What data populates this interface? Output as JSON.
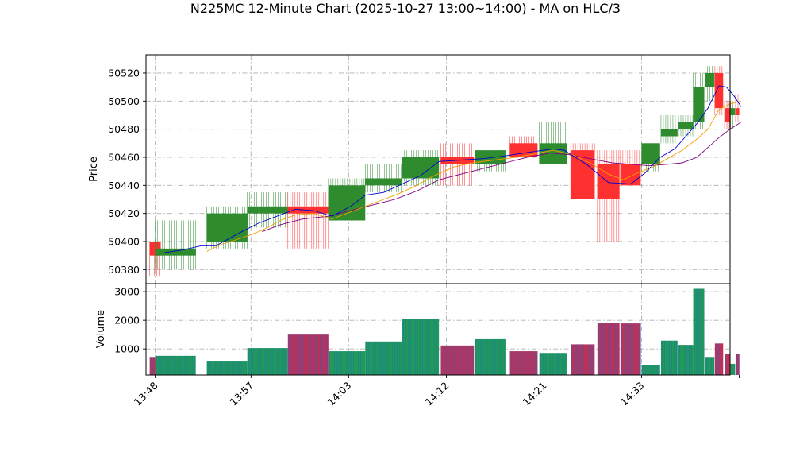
{
  "chart_data": {
    "type": "candlestick",
    "title": "N225MC 12-Minute Chart (2025-10-27 13:00~14:00) - MA on HLC/3",
    "price_panel": {
      "ylabel": "Price",
      "yticks": [
        50380,
        50400,
        50420,
        50440,
        50460,
        50480,
        50500,
        50520
      ],
      "ylim": [
        50370,
        50533
      ],
      "grid": true
    },
    "volume_panel": {
      "ylabel": "Volume",
      "yticks": [
        1000,
        2000,
        3000
      ],
      "ylim": [
        90,
        3280
      ],
      "grid": true
    },
    "xlim": [
      -0.5,
      31.2
    ],
    "xticks": [
      {
        "index": 0,
        "label": "13:48"
      },
      {
        "index": 5.2,
        "label": "13:57"
      },
      {
        "index": 10.5,
        "label": "14:03"
      },
      {
        "index": 15.8,
        "label": "14:12"
      },
      {
        "index": 21.1,
        "label": "14:21"
      },
      {
        "index": 26.4,
        "label": "14:33"
      },
      {
        "index": 31.7,
        "label": ""
      }
    ],
    "up_color": "#2e8b2e",
    "down_color": "#ff3030",
    "vol_up_color": "#1f9a58",
    "vol_down_color": "#b8325a",
    "ma_fast_color": "#0000cc",
    "ma_mid_color": "#f0a000",
    "ma_slow_color": "#800080",
    "candles": [
      {
        "x": 0,
        "w": 0.6,
        "open": 50400,
        "high": 50400,
        "low": 50375,
        "close": 50390,
        "volume": 720
      },
      {
        "x": 1.1,
        "w": 2.2,
        "open": 50390,
        "high": 50415,
        "low": 50380,
        "close": 50395,
        "volume": 760
      },
      {
        "x": 3.9,
        "w": 2.2,
        "open": 50400,
        "high": 50425,
        "low": 50395,
        "close": 50420,
        "volume": 560
      },
      {
        "x": 6.1,
        "w": 2.2,
        "open": 50420,
        "high": 50435,
        "low": 50410,
        "close": 50425,
        "volume": 1030
      },
      {
        "x": 8.3,
        "w": 2.2,
        "open": 50425,
        "high": 50435,
        "low": 50395,
        "close": 50420,
        "volume": 1500
      },
      {
        "x": 10.4,
        "w": 2.0,
        "open": 50415,
        "high": 50445,
        "low": 50415,
        "close": 50440,
        "volume": 920
      },
      {
        "x": 12.4,
        "w": 2.0,
        "open": 50440,
        "high": 50455,
        "low": 50435,
        "close": 50445,
        "volume": 1260
      },
      {
        "x": 14.4,
        "w": 2.0,
        "open": 50445,
        "high": 50465,
        "low": 50440,
        "close": 50460,
        "volume": 2060
      },
      {
        "x": 16.4,
        "w": 1.8,
        "open": 50460,
        "high": 50470,
        "low": 50440,
        "close": 50455,
        "volume": 1120
      },
      {
        "x": 18.2,
        "w": 1.7,
        "open": 50455,
        "high": 50465,
        "low": 50450,
        "close": 50465,
        "volume": 1340
      },
      {
        "x": 20.0,
        "w": 1.5,
        "open": 50470,
        "high": 50475,
        "low": 50460,
        "close": 50460,
        "volume": 920
      },
      {
        "x": 21.6,
        "w": 1.5,
        "open": 50455,
        "high": 50485,
        "low": 50455,
        "close": 50470,
        "volume": 860
      },
      {
        "x": 23.2,
        "w": 1.3,
        "open": 50465,
        "high": 50470,
        "low": 50430,
        "close": 50430,
        "volume": 1160
      },
      {
        "x": 24.6,
        "w": 1.2,
        "open": 50455,
        "high": 50465,
        "low": 50400,
        "close": 50430,
        "volume": 1920
      },
      {
        "x": 25.8,
        "w": 1.1,
        "open": 50455,
        "high": 50465,
        "low": 50440,
        "close": 50440,
        "volume": 1890
      },
      {
        "x": 26.9,
        "w": 1.0,
        "open": 50455,
        "high": 50470,
        "low": 50450,
        "close": 50470,
        "volume": 430
      },
      {
        "x": 27.9,
        "w": 0.9,
        "open": 50475,
        "high": 50490,
        "low": 50470,
        "close": 50480,
        "volume": 1290
      },
      {
        "x": 28.8,
        "w": 0.8,
        "open": 50480,
        "high": 50490,
        "low": 50475,
        "close": 50485,
        "volume": 1140
      },
      {
        "x": 29.5,
        "w": 0.6,
        "open": 50485,
        "high": 50520,
        "low": 50480,
        "close": 50510,
        "volume": 3100
      },
      {
        "x": 30.1,
        "w": 0.5,
        "open": 50510,
        "high": 50525,
        "low": 50500,
        "close": 50520,
        "volume": 720
      },
      {
        "x": 30.6,
        "w": 0.45,
        "open": 50520,
        "high": 50525,
        "low": 50490,
        "close": 50495,
        "volume": 1190
      },
      {
        "x": 31.05,
        "w": 0.3,
        "open": 50495,
        "high": 50500,
        "low": 50480,
        "close": 50485,
        "volume": 820
      },
      {
        "x": 31.35,
        "w": 0.25,
        "open": 50490,
        "high": 50500,
        "low": 50480,
        "close": 50495,
        "volume": 480
      },
      {
        "x": 31.6,
        "w": 0.2,
        "open": 50495,
        "high": 50505,
        "low": 50485,
        "close": 50490,
        "volume": 820
      }
    ],
    "ma_fast": [
      [
        0.5,
        50392
      ],
      [
        1.5,
        50394
      ],
      [
        2.5,
        50397
      ],
      [
        3.3,
        50397
      ],
      [
        4.4,
        50405
      ],
      [
        5.6,
        50413
      ],
      [
        6.8,
        50419
      ],
      [
        7.6,
        50423
      ],
      [
        8.6,
        50422
      ],
      [
        9.6,
        50418
      ],
      [
        10.6,
        50425
      ],
      [
        11.4,
        50433
      ],
      [
        12.4,
        50435
      ],
      [
        13.4,
        50441
      ],
      [
        14.4,
        50447
      ],
      [
        15.4,
        50457
      ],
      [
        16.6,
        50458
      ],
      [
        17.8,
        50459
      ],
      [
        19.0,
        50461
      ],
      [
        20.5,
        50464
      ],
      [
        21.6,
        50466
      ],
      [
        22.2,
        50465
      ],
      [
        23.4,
        50455
      ],
      [
        24.6,
        50442
      ],
      [
        25.8,
        50441
      ],
      [
        26.6,
        50449
      ],
      [
        27.4,
        50460
      ],
      [
        28.2,
        50466
      ],
      [
        28.8,
        50475
      ],
      [
        29.4,
        50484
      ],
      [
        30.0,
        50495
      ],
      [
        30.6,
        50511
      ],
      [
        31.0,
        50510
      ],
      [
        31.4,
        50504
      ],
      [
        31.8,
        50496
      ]
    ],
    "ma_mid": [
      [
        2.8,
        50393
      ],
      [
        3.6,
        50398
      ],
      [
        4.8,
        50403
      ],
      [
        5.8,
        50408
      ],
      [
        6.8,
        50415
      ],
      [
        7.6,
        50419
      ],
      [
        8.6,
        50420
      ],
      [
        9.6,
        50416
      ],
      [
        10.8,
        50422
      ],
      [
        12.0,
        50428
      ],
      [
        13.2,
        50434
      ],
      [
        14.2,
        50440
      ],
      [
        15.0,
        50446
      ],
      [
        16.2,
        50453
      ],
      [
        17.2,
        50456
      ],
      [
        18.4,
        50458
      ],
      [
        19.6,
        50460
      ],
      [
        20.8,
        50463
      ],
      [
        21.6,
        50465
      ],
      [
        22.6,
        50462
      ],
      [
        23.6,
        50456
      ],
      [
        24.6,
        50448
      ],
      [
        25.4,
        50444
      ],
      [
        26.2,
        50449
      ],
      [
        27.0,
        50453
      ],
      [
        27.8,
        50459
      ],
      [
        28.6,
        50465
      ],
      [
        29.4,
        50473
      ],
      [
        30.0,
        50480
      ],
      [
        30.6,
        50494
      ],
      [
        31.2,
        50498
      ],
      [
        31.8,
        50500
      ]
    ],
    "ma_slow": [
      [
        5.8,
        50407
      ],
      [
        6.8,
        50412
      ],
      [
        8.0,
        50416
      ],
      [
        9.4,
        50418
      ],
      [
        10.6,
        50422
      ],
      [
        11.8,
        50426
      ],
      [
        13.0,
        50430
      ],
      [
        14.2,
        50436
      ],
      [
        15.4,
        50444
      ],
      [
        16.6,
        50448
      ],
      [
        17.8,
        50452
      ],
      [
        19.0,
        50456
      ],
      [
        20.2,
        50460
      ],
      [
        21.4,
        50463
      ],
      [
        22.4,
        50462
      ],
      [
        23.6,
        50459
      ],
      [
        24.8,
        50456
      ],
      [
        25.8,
        50455
      ],
      [
        26.8,
        50454
      ],
      [
        27.8,
        50455
      ],
      [
        28.6,
        50456
      ],
      [
        29.4,
        50460
      ],
      [
        30.0,
        50467
      ],
      [
        30.6,
        50474
      ],
      [
        31.2,
        50480
      ],
      [
        31.8,
        50485
      ]
    ]
  }
}
